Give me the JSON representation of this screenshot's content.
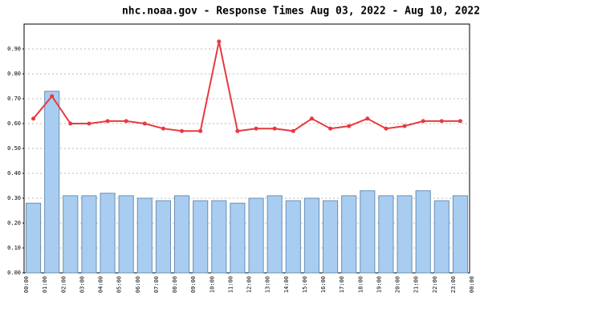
{
  "chart_data": {
    "type": "bar",
    "title": "nhc.noaa.gov - Response Times Aug 03, 2022 - Aug 10, 2022",
    "categories": [
      "00:00",
      "01:00",
      "02:00",
      "03:00",
      "04:00",
      "05:00",
      "06:00",
      "07:00",
      "08:00",
      "09:00",
      "10:00",
      "11:00",
      "12:00",
      "13:00",
      "14:00",
      "15:00",
      "16:00",
      "17:00",
      "18:00",
      "19:00",
      "20:00",
      "21:00",
      "22:00",
      "23:00"
    ],
    "end_label": "00:00",
    "series": [
      {
        "type": "bar",
        "color": "#a8cdf0",
        "values": [
          0.28,
          0.73,
          0.31,
          0.31,
          0.32,
          0.31,
          0.3,
          0.29,
          0.31,
          0.29,
          0.29,
          0.28,
          0.3,
          0.31,
          0.29,
          0.3,
          0.29,
          0.31,
          0.33,
          0.31,
          0.31,
          0.33,
          0.29,
          0.31
        ]
      },
      {
        "type": "line",
        "color": "#e8393f",
        "values": [
          0.62,
          0.71,
          0.6,
          0.6,
          0.61,
          0.61,
          0.6,
          0.58,
          0.57,
          0.57,
          0.93,
          0.57,
          0.58,
          0.58,
          0.57,
          0.62,
          0.58,
          0.59,
          0.62,
          0.58,
          0.59,
          0.61,
          0.61,
          0.61
        ]
      }
    ],
    "ylim": [
      0,
      1.0
    ],
    "yticks": [
      {
        "value": 0,
        "label": "0.00"
      },
      {
        "value": 0.1,
        "label": "0.10"
      },
      {
        "value": 0.2,
        "label": "0.20"
      },
      {
        "value": 0.3,
        "label": "0.30"
      },
      {
        "value": 0.4,
        "label": "0.40"
      },
      {
        "value": 0.5,
        "label": "0.50"
      },
      {
        "value": 0.6,
        "label": "0.60"
      },
      {
        "value": 0.7,
        "label": "0.70"
      },
      {
        "value": 0.8,
        "label": "0.80"
      },
      {
        "value": 0.9,
        "label": "0.90"
      }
    ],
    "grid": true
  }
}
